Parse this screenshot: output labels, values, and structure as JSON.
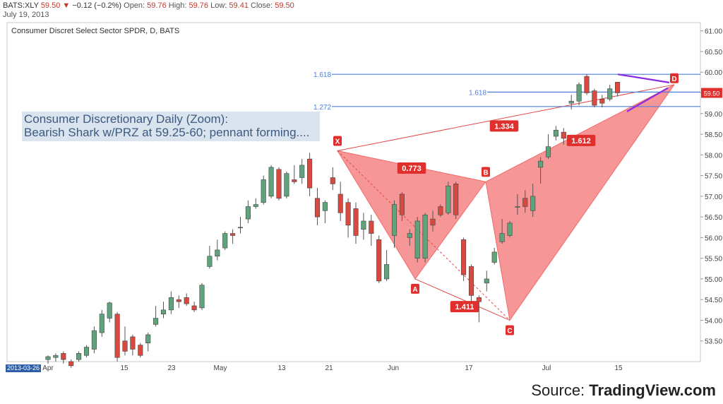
{
  "header": {
    "symbol": "BATS:XLY",
    "last": "59.50",
    "change": "−0.12 (−0.2%)",
    "open_label": "Open:",
    "open": "59.76",
    "high_label": "High:",
    "high": "59.76",
    "low_label": "Low:",
    "low": "59.41",
    "close_label": "Close:",
    "close": "59.50",
    "date": "July 19, 2013"
  },
  "source": {
    "prefix": "Source: ",
    "brand": "TradingView.com"
  },
  "colors": {
    "up": "#5fa37c",
    "down": "#d9493f",
    "harmonic": "#f26a6a",
    "fib_line": "#4f7fd9",
    "pennant": "#8a2be2",
    "badge": "#2b5ea7"
  },
  "chart_data": {
    "type": "candlestick",
    "title": "Consumer Discret Select Sector SPDR, D, BATS",
    "annotation": [
      "Consumer Discretionary Daily (Zoom):",
      "Bearish Shark w/PRZ at 59.25-60; pennant forming...."
    ],
    "ylim": [
      53.0,
      61.2
    ],
    "y_ticks": [
      "53.50",
      "54.00",
      "54.50",
      "55.00",
      "55.50",
      "56.00",
      "56.50",
      "57.00",
      "57.50",
      "58.00",
      "58.50",
      "59.00",
      "59.50",
      "60.00",
      "60.50",
      "61.00"
    ],
    "x_labels": [
      "2013-03-26",
      "Apr",
      "15",
      "23",
      "May",
      "13",
      "21",
      "Jun",
      "17",
      "Jul",
      "15"
    ],
    "last_price_label": "59.50",
    "candles": [
      {
        "o": 53.05,
        "c": 53.12,
        "h": 53.15,
        "l": 52.95
      },
      {
        "o": 53.1,
        "c": 53.15,
        "h": 53.2,
        "l": 53.0
      },
      {
        "o": 53.2,
        "c": 53.05,
        "h": 53.25,
        "l": 52.95
      },
      {
        "o": 53.0,
        "c": 52.9,
        "h": 53.05,
        "l": 52.85
      },
      {
        "o": 53.05,
        "c": 53.2,
        "h": 53.25,
        "l": 53.0
      },
      {
        "o": 53.15,
        "c": 53.35,
        "h": 53.4,
        "l": 53.1
      },
      {
        "o": 53.3,
        "c": 53.75,
        "h": 53.85,
        "l": 53.2
      },
      {
        "o": 53.7,
        "c": 54.15,
        "h": 54.25,
        "l": 53.6
      },
      {
        "o": 54.05,
        "c": 54.42,
        "h": 54.45,
        "l": 53.95
      },
      {
        "o": 54.15,
        "c": 53.1,
        "h": 54.2,
        "l": 53.0
      },
      {
        "o": 53.5,
        "c": 53.25,
        "h": 53.85,
        "l": 53.15
      },
      {
        "o": 53.6,
        "c": 53.3,
        "h": 53.65,
        "l": 53.15
      },
      {
        "o": 53.4,
        "c": 53.15,
        "h": 53.45,
        "l": 53.1
      },
      {
        "o": 53.45,
        "c": 53.65,
        "h": 53.7,
        "l": 53.25
      },
      {
        "o": 53.9,
        "c": 54.05,
        "h": 54.35,
        "l": 53.85
      },
      {
        "o": 54.15,
        "c": 54.25,
        "h": 54.45,
        "l": 54.05
      },
      {
        "o": 54.25,
        "c": 54.55,
        "h": 54.7,
        "l": 54.15
      },
      {
        "o": 54.5,
        "c": 54.45,
        "h": 54.6,
        "l": 54.3
      },
      {
        "o": 54.55,
        "c": 54.4,
        "h": 54.65,
        "l": 54.35
      },
      {
        "o": 54.35,
        "c": 54.25,
        "h": 54.45,
        "l": 54.2
      },
      {
        "o": 54.3,
        "c": 54.85,
        "h": 54.9,
        "l": 54.25
      },
      {
        "o": 55.3,
        "c": 55.55,
        "h": 55.8,
        "l": 55.25
      },
      {
        "o": 55.55,
        "c": 55.7,
        "h": 55.95,
        "l": 55.45
      },
      {
        "o": 55.75,
        "c": 56.1,
        "h": 56.15,
        "l": 55.7
      },
      {
        "o": 56.1,
        "c": 56.05,
        "h": 56.2,
        "l": 55.85
      },
      {
        "o": 56.25,
        "c": 56.25,
        "h": 56.5,
        "l": 56.1
      },
      {
        "o": 56.45,
        "c": 56.75,
        "h": 56.9,
        "l": 56.35
      },
      {
        "o": 56.75,
        "c": 56.8,
        "h": 56.95,
        "l": 56.7
      },
      {
        "o": 56.85,
        "c": 57.4,
        "h": 57.5,
        "l": 56.8
      },
      {
        "o": 57.0,
        "c": 57.7,
        "h": 57.75,
        "l": 56.95
      },
      {
        "o": 57.65,
        "c": 56.95,
        "h": 57.7,
        "l": 56.9
      },
      {
        "o": 57.0,
        "c": 57.55,
        "h": 57.6,
        "l": 56.95
      },
      {
        "o": 57.4,
        "c": 57.35,
        "h": 57.75,
        "l": 57.3
      },
      {
        "o": 57.45,
        "c": 57.75,
        "h": 57.9,
        "l": 57.3
      },
      {
        "o": 57.9,
        "c": 57.2,
        "h": 58.05,
        "l": 57.0
      },
      {
        "o": 56.95,
        "c": 56.5,
        "h": 57.2,
        "l": 56.3
      },
      {
        "o": 56.65,
        "c": 56.85,
        "h": 56.9,
        "l": 56.35
      },
      {
        "o": 57.45,
        "c": 57.3,
        "h": 57.7,
        "l": 57.15
      },
      {
        "o": 57.05,
        "c": 56.6,
        "h": 57.35,
        "l": 56.4
      },
      {
        "o": 56.85,
        "c": 56.3,
        "h": 56.95,
        "l": 56.0
      },
      {
        "o": 56.7,
        "c": 56.05,
        "h": 56.85,
        "l": 55.85
      },
      {
        "o": 56.2,
        "c": 56.4,
        "h": 56.6,
        "l": 55.95
      },
      {
        "o": 56.4,
        "c": 56.1,
        "h": 56.55,
        "l": 55.8
      },
      {
        "o": 55.95,
        "c": 54.95,
        "h": 56.05,
        "l": 54.9
      },
      {
        "o": 55.0,
        "c": 55.35,
        "h": 55.7,
        "l": 54.95
      },
      {
        "o": 56.05,
        "c": 56.8,
        "h": 56.9,
        "l": 55.75
      },
      {
        "o": 57.05,
        "c": 56.55,
        "h": 57.1,
        "l": 56.4
      },
      {
        "o": 56.0,
        "c": 56.1,
        "h": 56.2,
        "l": 55.8
      },
      {
        "o": 55.5,
        "c": 56.4,
        "h": 56.5,
        "l": 55.4
      },
      {
        "o": 55.5,
        "c": 56.55,
        "h": 56.6,
        "l": 55.4
      },
      {
        "o": 56.45,
        "c": 56.3,
        "h": 56.65,
        "l": 56.15
      },
      {
        "o": 56.75,
        "c": 56.55,
        "h": 56.8,
        "l": 56.5
      },
      {
        "o": 56.6,
        "c": 57.25,
        "h": 57.35,
        "l": 56.55
      },
      {
        "o": 57.3,
        "c": 56.55,
        "h": 57.35,
        "l": 56.45
      },
      {
        "o": 55.95,
        "c": 55.1,
        "h": 56.0,
        "l": 54.95
      },
      {
        "o": 55.3,
        "c": 54.6,
        "h": 55.35,
        "l": 54.25
      },
      {
        "o": 54.55,
        "c": 54.45,
        "h": 54.6,
        "l": 53.95
      },
      {
        "o": 54.9,
        "c": 55.0,
        "h": 55.2,
        "l": 54.7
      },
      {
        "o": 55.4,
        "c": 55.65,
        "h": 55.75,
        "l": 55.35
      },
      {
        "o": 55.9,
        "c": 56.1,
        "h": 56.45,
        "l": 55.85
      },
      {
        "o": 56.05,
        "c": 56.35,
        "h": 56.4,
        "l": 56.0
      },
      {
        "o": 56.75,
        "c": 56.75,
        "h": 57.05,
        "l": 56.55
      },
      {
        "o": 56.95,
        "c": 56.75,
        "h": 57.15,
        "l": 56.6
      },
      {
        "o": 56.65,
        "c": 57.0,
        "h": 57.3,
        "l": 56.5
      },
      {
        "o": 57.7,
        "c": 57.85,
        "h": 57.95,
        "l": 57.3
      },
      {
        "o": 57.95,
        "c": 58.2,
        "h": 58.5,
        "l": 57.9
      },
      {
        "o": 58.45,
        "c": 58.6,
        "h": 58.7,
        "l": 58.35
      },
      {
        "o": 58.55,
        "c": 58.4,
        "h": 58.65,
        "l": 58.25
      },
      {
        "o": 59.25,
        "c": 59.3,
        "h": 59.45,
        "l": 59.1
      },
      {
        "o": 59.3,
        "c": 59.7,
        "h": 59.75,
        "l": 59.2
      },
      {
        "o": 59.9,
        "c": 59.5,
        "h": 59.95,
        "l": 59.45
      },
      {
        "o": 59.55,
        "c": 59.2,
        "h": 59.6,
        "l": 59.15
      },
      {
        "o": 59.35,
        "c": 59.25,
        "h": 59.45,
        "l": 59.15
      },
      {
        "o": 59.35,
        "c": 59.6,
        "h": 59.7,
        "l": 59.3
      },
      {
        "o": 59.76,
        "c": 59.5,
        "h": 59.76,
        "l": 59.41
      }
    ],
    "fib_levels": [
      {
        "label": "1.618",
        "value": 59.95
      },
      {
        "label": "1.618",
        "value": 59.52
      },
      {
        "label": "1.272",
        "value": 59.17
      }
    ],
    "pattern": {
      "points": [
        {
          "label": "X",
          "value": 58.1
        },
        {
          "label": "A",
          "value": 55.0
        },
        {
          "label": "B",
          "value": 57.35
        },
        {
          "label": "C",
          "value": 54.0
        },
        {
          "label": "D",
          "value": 59.7
        }
      ],
      "ratios": [
        "0.773",
        "1.411",
        "1.612",
        "1.334"
      ]
    }
  }
}
